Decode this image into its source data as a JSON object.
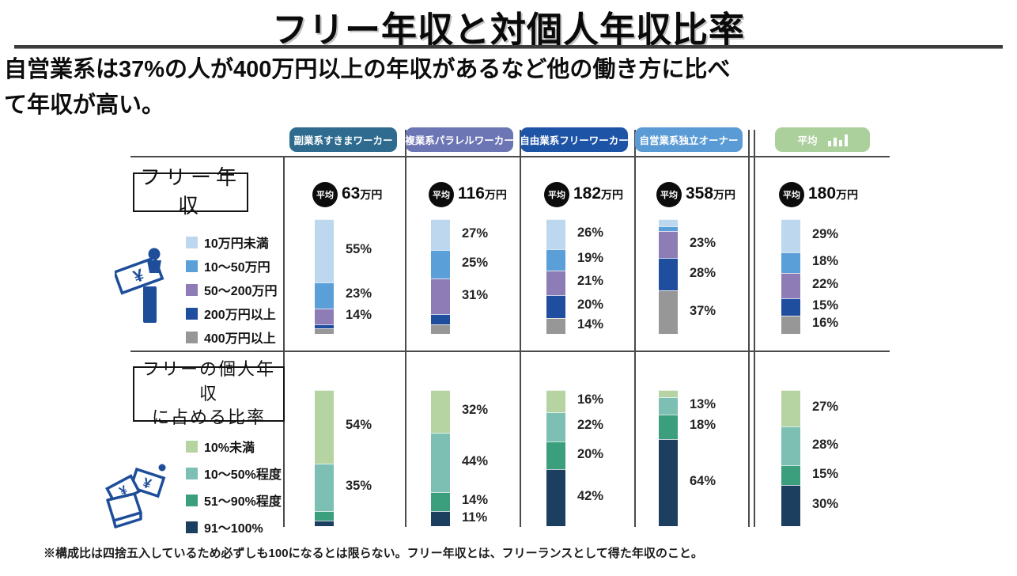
{
  "title": "フリー年収と対個人年収比率",
  "subtitle": {
    "line1": "自営業系は37%の人が400万円以上の年収があるなど他の働き方に比べ",
    "line2": "て年収が高い。"
  },
  "footnote": "※構成比は四捨五入しているため必ずしも100になるとは限らない。フリー年収とは、フリーランスとして得た年収のこと。",
  "chart_data": {
    "type": "bar",
    "stacked": true,
    "unit": "%",
    "legend_position": "left",
    "avg_badge_label": "平均",
    "columns": [
      {
        "label": "副業系すきまワーカー",
        "color": "#2e6b8f"
      },
      {
        "label": "複業系パラレルワーカー",
        "color": "#6d76b4"
      },
      {
        "label": "自由業系フリーワーカー",
        "color": "#1e54a6"
      },
      {
        "label": "自営業系独立オーナー",
        "color": "#5b9bd5"
      },
      {
        "label": "平均",
        "color": "#abd09c",
        "icon": "bar-chart-icon"
      }
    ],
    "sections": [
      {
        "title": "フリー年収",
        "legend": [
          {
            "label": "10万円未満",
            "color": "#bdd7ee"
          },
          {
            "label": "10〜50万円",
            "color": "#5b9fd8"
          },
          {
            "label": "50〜200万円",
            "color": "#8d7cb5"
          },
          {
            "label": "200万円以上",
            "color": "#1f4e9e"
          },
          {
            "label": "400万円以上",
            "color": "#979797"
          }
        ],
        "averages": [
          {
            "value": "63",
            "unit": "万円"
          },
          {
            "value": "116",
            "unit": "万円"
          },
          {
            "value": "182",
            "unit": "万円"
          },
          {
            "value": "358",
            "unit": "万円"
          },
          {
            "value": "180",
            "unit": "万円"
          }
        ],
        "bars": [
          {
            "values": [
              55,
              23,
              14,
              3,
              5
            ],
            "labels": [
              "55%",
              "23%",
              "14%",
              null,
              null
            ]
          },
          {
            "values": [
              27,
              25,
              31,
              9,
              8
            ],
            "labels": [
              "27%",
              "25%",
              "31%",
              null,
              null
            ]
          },
          {
            "values": [
              26,
              19,
              21,
              20,
              14
            ],
            "labels": [
              "26%",
              "19%",
              "21%",
              "20%",
              "14%"
            ]
          },
          {
            "values": [
              6,
              4,
              23,
              28,
              37
            ],
            "labels": [
              null,
              null,
              "23%",
              "28%",
              "37%"
            ]
          },
          {
            "values": [
              29,
              18,
              22,
              15,
              16
            ],
            "labels": [
              "29%",
              "18%",
              "22%",
              "15%",
              "16%"
            ]
          }
        ]
      },
      {
        "title": "フリーの個人年収\nに占める比率",
        "legend": [
          {
            "label": "10%未満",
            "color": "#b6d4a2"
          },
          {
            "label": "10〜50%程度",
            "color": "#7dbfb2"
          },
          {
            "label": "51〜90%程度",
            "color": "#3b9f7e"
          },
          {
            "label": "91〜100%",
            "color": "#1c3f60"
          }
        ],
        "bars": [
          {
            "values": [
              54,
              35,
              7,
              4
            ],
            "labels": [
              "54%",
              "35%",
              null,
              null
            ]
          },
          {
            "values": [
              32,
              44,
              14,
              11
            ],
            "labels": [
              "32%",
              "44%",
              "14%",
              "11%"
            ]
          },
          {
            "values": [
              16,
              22,
              20,
              42
            ],
            "labels": [
              "16%",
              "22%",
              "20%",
              "42%"
            ]
          },
          {
            "values": [
              5,
              13,
              18,
              64
            ],
            "labels": [
              null,
              "13%",
              "18%",
              "64%"
            ]
          },
          {
            "values": [
              27,
              28,
              15,
              30
            ],
            "labels": [
              "27%",
              "28%",
              "15%",
              "30%"
            ]
          }
        ]
      }
    ]
  }
}
